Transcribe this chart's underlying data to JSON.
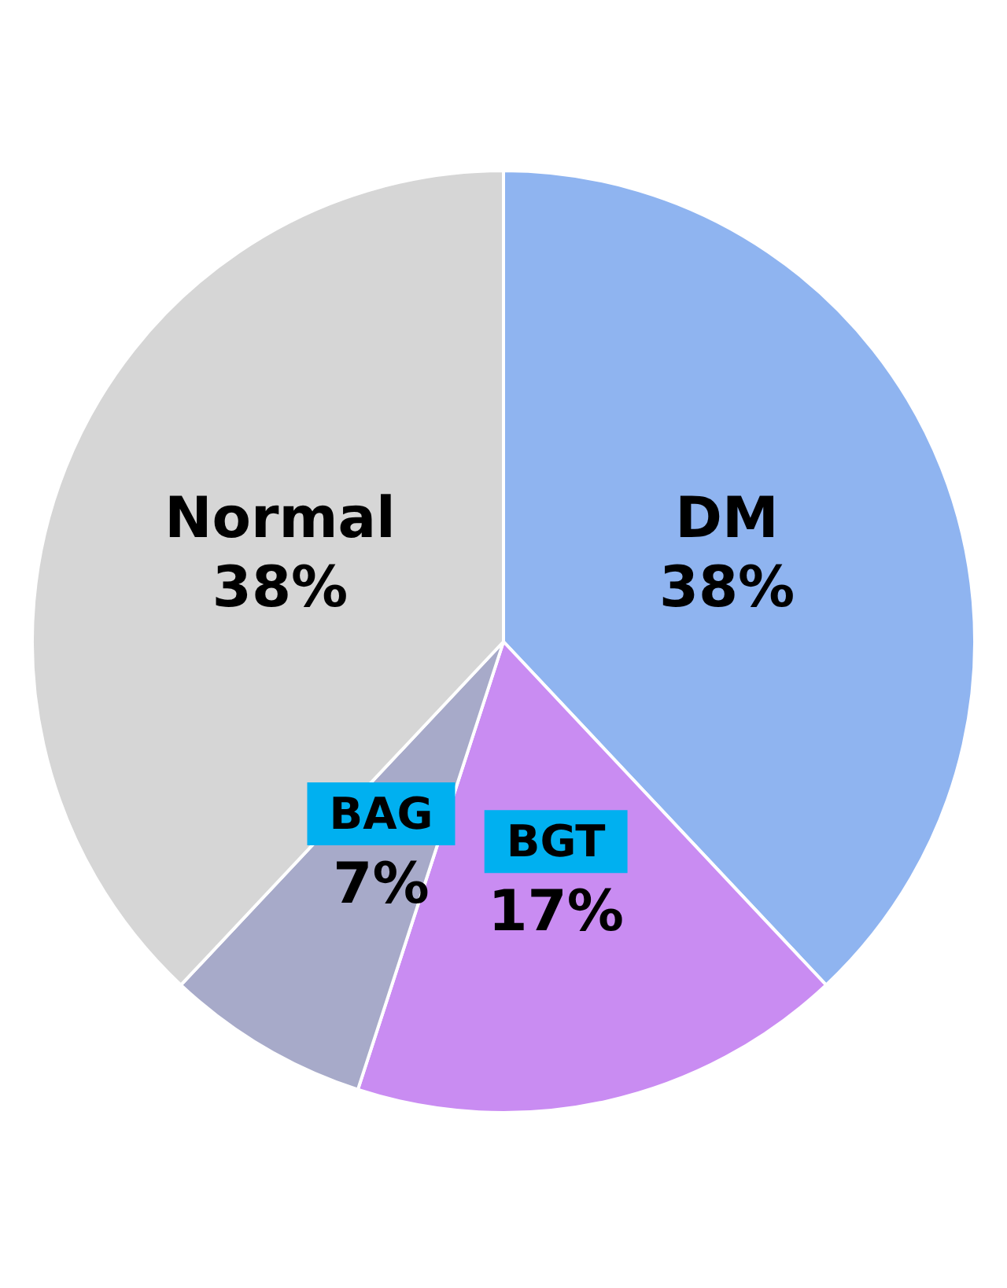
{
  "chart_data": {
    "type": "pie",
    "categories": [
      "DM",
      "BGT",
      "BAG",
      "Normal"
    ],
    "values": [
      38,
      17,
      7,
      38
    ],
    "value_labels": [
      "38%",
      "17%",
      "7%",
      "38%"
    ],
    "colors": [
      "#8fb4f0",
      "#c98cf2",
      "#a7aac9",
      "#d6d6d6"
    ],
    "legend": false
  }
}
